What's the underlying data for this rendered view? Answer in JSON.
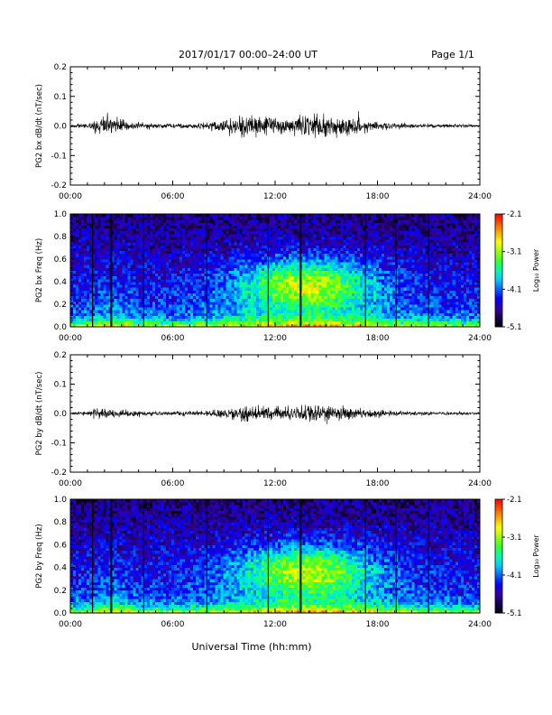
{
  "header": {
    "title": "2017/01/17  00:00–24:00 UT",
    "page": "Page 1/1"
  },
  "footer": {
    "xlabel": "Universal Time (hh:mm)"
  },
  "colors": {
    "background": "#ffffff",
    "axis": "#000000",
    "trace": "#000000",
    "colormap": [
      "#000000",
      "#1a0055",
      "#3300aa",
      "#0000ff",
      "#0066ff",
      "#00ccff",
      "#00ffaa",
      "#33ff33",
      "#99ff00",
      "#ffff00",
      "#ffaa00",
      "#ff5500",
      "#ff0000"
    ]
  },
  "chart_data": [
    {
      "type": "line",
      "panel": "bx-time-series",
      "ylabel": "PG2 bx dB/dt (nT/sec)",
      "xlim": [
        0,
        24
      ],
      "ylim": [
        -0.2,
        0.2
      ],
      "x_ticks": [
        "00:00",
        "06:00",
        "12:00",
        "18:00",
        "24:00"
      ],
      "y_ticks": [
        "-0.2",
        "-0.1",
        "0.0",
        "0.1",
        "0.2"
      ],
      "envelope": {
        "hours": [
          0,
          1,
          1.5,
          2,
          2.5,
          3,
          4,
          5,
          6,
          7,
          8,
          9,
          10,
          11,
          12,
          13,
          14,
          15,
          16,
          17,
          18,
          19,
          20,
          21,
          22,
          23,
          24
        ],
        "amplitude": [
          0.005,
          0.008,
          0.025,
          0.035,
          0.03,
          0.02,
          0.012,
          0.01,
          0.008,
          0.01,
          0.012,
          0.02,
          0.04,
          0.035,
          0.03,
          0.03,
          0.035,
          0.04,
          0.035,
          0.025,
          0.015,
          0.01,
          0.008,
          0.008,
          0.007,
          0.006,
          0.005
        ]
      }
    },
    {
      "type": "heatmap",
      "panel": "bx-spectrogram",
      "ylabel": "PG2 bx Freq (Hz)",
      "xlim": [
        0,
        24
      ],
      "ylim": [
        0.0,
        1.0
      ],
      "x_ticks": [
        "00:00",
        "06:00",
        "12:00",
        "18:00",
        "24:00"
      ],
      "y_ticks": [
        "0.0",
        "0.2",
        "0.4",
        "0.6",
        "0.8",
        "1.0"
      ],
      "colorbar": {
        "label": "Log₁₀ Power",
        "min": -5.1,
        "max": -2.1,
        "ticks": [
          "-2.1",
          "-3.1",
          "-4.1",
          "-5.1"
        ]
      },
      "gap_lines_hours": [
        1.3,
        2.4,
        4.3,
        8.0,
        11.6,
        13.5,
        17.3,
        19.1,
        21.0
      ],
      "activity_peak": {
        "hour": 13.8,
        "freq": 0.38
      }
    },
    {
      "type": "line",
      "panel": "by-time-series",
      "ylabel": "PG2 by dB/dt (nT/sec)",
      "xlim": [
        0,
        24
      ],
      "ylim": [
        -0.2,
        0.2
      ],
      "x_ticks": [
        "00:00",
        "06:00",
        "12:00",
        "18:00",
        "24:00"
      ],
      "y_ticks": [
        "-0.2",
        "-0.1",
        "0.0",
        "0.1",
        "0.2"
      ],
      "envelope": {
        "hours": [
          0,
          1,
          1.5,
          2,
          2.5,
          3,
          4,
          5,
          6,
          7,
          8,
          9,
          10,
          11,
          12,
          13,
          14,
          15,
          16,
          17,
          18,
          19,
          20,
          21,
          22,
          23,
          24
        ],
        "amplitude": [
          0.004,
          0.008,
          0.02,
          0.018,
          0.015,
          0.012,
          0.01,
          0.008,
          0.007,
          0.008,
          0.01,
          0.015,
          0.025,
          0.025,
          0.02,
          0.025,
          0.03,
          0.035,
          0.025,
          0.018,
          0.012,
          0.008,
          0.007,
          0.006,
          0.005,
          0.005,
          0.004
        ]
      }
    },
    {
      "type": "heatmap",
      "panel": "by-spectrogram",
      "ylabel": "PG2 by Freq (Hz)",
      "xlim": [
        0,
        24
      ],
      "ylim": [
        0.0,
        1.0
      ],
      "x_ticks": [
        "00:00",
        "06:00",
        "12:00",
        "18:00",
        "24:00"
      ],
      "y_ticks": [
        "0.0",
        "0.2",
        "0.4",
        "0.6",
        "0.8",
        "1.0"
      ],
      "colorbar": {
        "label": "Log₁₀ Power",
        "min": -5.1,
        "max": -2.1,
        "ticks": [
          "-2.1",
          "-3.1",
          "-4.1",
          "-5.1"
        ]
      },
      "gap_lines_hours": [
        1.3,
        2.4,
        4.3,
        8.0,
        11.6,
        13.5,
        17.3,
        19.1,
        21.0
      ],
      "activity_peak": {
        "hour": 13.8,
        "freq": 0.38
      }
    }
  ]
}
